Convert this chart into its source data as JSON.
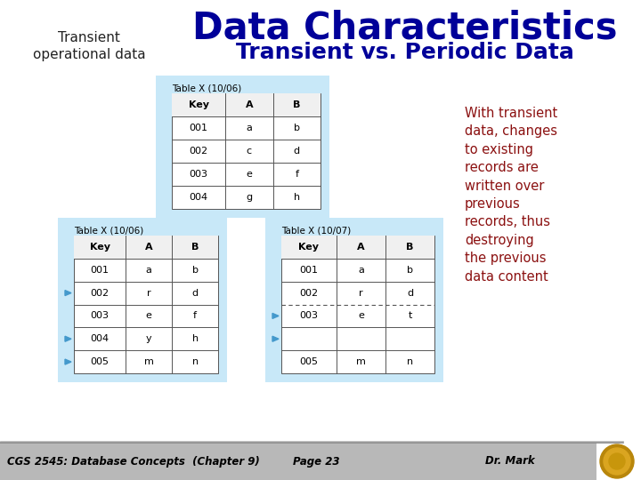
{
  "title": "Data Characteristics",
  "subtitle": "Transient vs. Periodic Data",
  "top_left_text": "Transient\noperational data",
  "description_text": "With transient\ndata, changes\nto existing\nrecords are\nwritten over\nprevious\nrecords, thus\ndestroying\nthe previous\ndata content",
  "footer_left": "CGS 2545: Database Concepts  (Chapter 9)",
  "footer_center": "Page 23",
  "footer_right": "Dr. Mark",
  "title_color": "#000099",
  "subtitle_color": "#000099",
  "topleft_color": "#222222",
  "desc_color": "#8B1010",
  "table_bg": "#c8e8f8",
  "top_table": {
    "title": "Table X (10/06)",
    "headers": [
      "Key",
      "A",
      "B"
    ],
    "rows": [
      [
        "001",
        "a",
        "b"
      ],
      [
        "002",
        "c",
        "d"
      ],
      [
        "003",
        "e",
        "f"
      ],
      [
        "004",
        "g",
        "h"
      ]
    ],
    "arrows": [],
    "dashed_row": null
  },
  "bottom_left_table": {
    "title": "Table X (10/06)",
    "headers": [
      "Key",
      "A",
      "B"
    ],
    "rows": [
      [
        "001",
        "a",
        "b"
      ],
      [
        "002",
        "r",
        "d"
      ],
      [
        "003",
        "e",
        "f"
      ],
      [
        "004",
        "y",
        "h"
      ],
      [
        "005",
        "m",
        "n"
      ]
    ],
    "arrows": [
      1,
      3,
      4
    ],
    "dashed_row": null
  },
  "bottom_right_table": {
    "title": "Table X (10/07)",
    "headers": [
      "Key",
      "A",
      "B"
    ],
    "rows": [
      [
        "001",
        "a",
        "b"
      ],
      [
        "002",
        "r",
        "d"
      ],
      [
        "003",
        "e",
        "t"
      ],
      [
        "",
        "",
        ""
      ],
      [
        "005",
        "m",
        "n"
      ]
    ],
    "arrows": [
      2,
      3
    ],
    "dashed_row": 3
  },
  "footer_bg": "#b8b8b8",
  "footer_line_color": "#888888"
}
